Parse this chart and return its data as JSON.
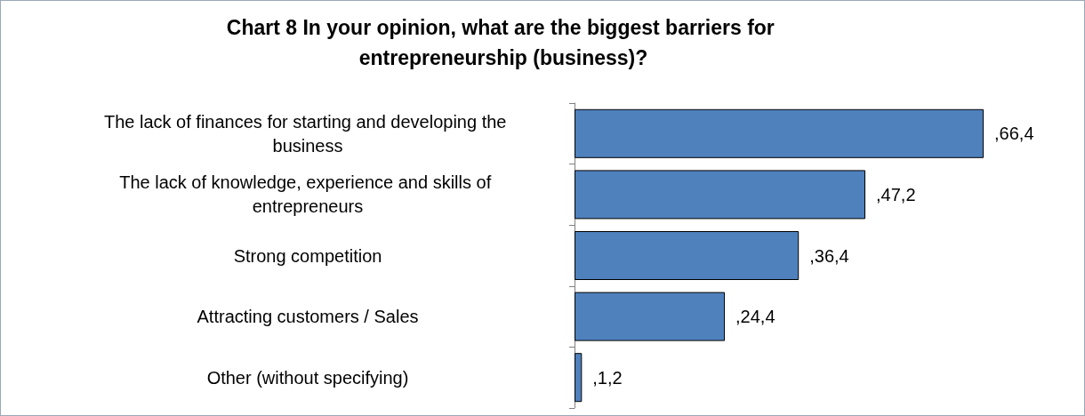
{
  "chart_data": {
    "type": "bar",
    "orientation": "horizontal",
    "title": "Chart 8 In your opinion, what are the biggest barriers for entrepreneurship (business)?",
    "categories": [
      "The lack of finances for starting and developing the business",
      "The lack of knowledge, experience and skills of entrepreneurs",
      "Strong competition",
      "Attracting customers / Sales",
      "Other (without specifying)"
    ],
    "values": [
      66.4,
      47.2,
      36.4,
      24.4,
      1.2
    ],
    "value_labels": [
      ",66,4",
      ",47,2",
      ",36,4",
      ",24,4",
      ",1,2"
    ],
    "color": "#4f81bd",
    "grid": false
  }
}
